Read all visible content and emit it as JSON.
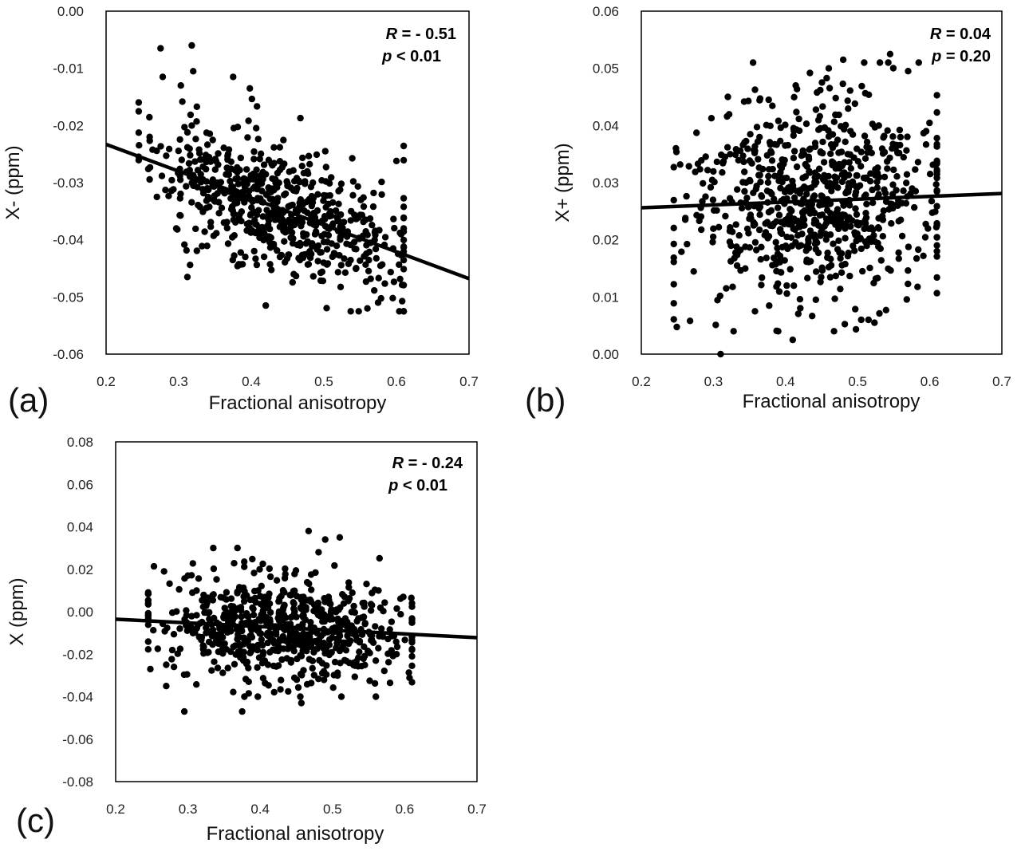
{
  "colors": {
    "points": "#000000",
    "axis": "#000000",
    "background": "#ffffff"
  },
  "chart_data": [
    {
      "id": "a",
      "type": "scatter",
      "panel_label": "(a)",
      "xlabel": "Fractional anisotropy",
      "ylabel": "X- (ppm)",
      "xlim": [
        0.2,
        0.7
      ],
      "ylim": [
        -0.06,
        0.0
      ],
      "xticks": [
        "0.2",
        "0.3",
        "0.4",
        "0.5",
        "0.6",
        "0.7"
      ],
      "yticks": [
        "0.00",
        "-0.01",
        "-0.02",
        "-0.03",
        "-0.04",
        "-0.05",
        "-0.06"
      ],
      "stats": {
        "r_symbol": "R",
        "r_text": " = - 0.51",
        "p_symbol": "p",
        "p_text": " < 0.01"
      },
      "trendline": {
        "x": [
          0.2,
          0.7
        ],
        "y": [
          -0.0233,
          -0.0468
        ]
      },
      "cloud": {
        "n": 650,
        "x_mean": 0.435,
        "x_sd": 0.085,
        "x_range": [
          0.245,
          0.61
        ],
        "slope": -0.047,
        "intercept": -0.0139,
        "resid_sd": 0.0055,
        "y_range": [
          -0.0525,
          -0.006
        ],
        "seed": 11
      },
      "points": [
        {
          "x": 0.275,
          "y": -0.0065
        },
        {
          "x": 0.318,
          "y": -0.006
        },
        {
          "x": 0.278,
          "y": -0.0115
        },
        {
          "x": 0.32,
          "y": -0.0105
        },
        {
          "x": 0.303,
          "y": -0.013
        },
        {
          "x": 0.375,
          "y": -0.0115
        },
        {
          "x": 0.398,
          "y": -0.0135
        },
        {
          "x": 0.312,
          "y": -0.0465
        },
        {
          "x": 0.42,
          "y": -0.0515
        },
        {
          "x": 0.56,
          "y": -0.052
        },
        {
          "x": 0.595,
          "y": -0.0502
        },
        {
          "x": 0.6,
          "y": -0.0262
        },
        {
          "x": 0.502,
          "y": -0.0245
        },
        {
          "x": 0.26,
          "y": -0.022
        },
        {
          "x": 0.27,
          "y": -0.0325
        }
      ]
    },
    {
      "id": "b",
      "type": "scatter",
      "panel_label": "(b)",
      "xlabel": "Fractional anisotropy",
      "ylabel": "X+ (ppm)",
      "xlim": [
        0.2,
        0.7
      ],
      "ylim": [
        0.0,
        0.06
      ],
      "xticks": [
        "0.2",
        "0.3",
        "0.4",
        "0.5",
        "0.6",
        "0.7"
      ],
      "yticks": [
        "0.06",
        "0.05",
        "0.04",
        "0.03",
        "0.02",
        "0.01",
        "0.00"
      ],
      "stats": {
        "r_symbol": "R",
        "r_text": " = 0.04",
        "p_symbol": "p",
        "p_text": " = 0.20"
      },
      "trendline": {
        "x": [
          0.2,
          0.7
        ],
        "y": [
          0.0256,
          0.0281
        ]
      },
      "cloud": {
        "n": 750,
        "x_mean": 0.435,
        "x_sd": 0.085,
        "x_range": [
          0.245,
          0.61
        ],
        "slope": 0.005,
        "intercept": 0.0246,
        "resid_sd": 0.0088,
        "y_range": [
          0.004,
          0.051
        ],
        "seed": 23
      },
      "points": [
        {
          "x": 0.355,
          "y": 0.051
        },
        {
          "x": 0.48,
          "y": 0.0515
        },
        {
          "x": 0.545,
          "y": 0.0525
        },
        {
          "x": 0.31,
          "y": 0.0
        },
        {
          "x": 0.41,
          "y": 0.0025
        },
        {
          "x": 0.328,
          "y": 0.004
        },
        {
          "x": 0.505,
          "y": 0.006
        },
        {
          "x": 0.515,
          "y": 0.006
        },
        {
          "x": 0.61,
          "y": 0.018
        },
        {
          "x": 0.248,
          "y": 0.036
        },
        {
          "x": 0.32,
          "y": 0.045
        },
        {
          "x": 0.595,
          "y": 0.039
        },
        {
          "x": 0.57,
          "y": 0.0495
        },
        {
          "x": 0.46,
          "y": 0.05
        }
      ]
    },
    {
      "id": "c",
      "type": "scatter",
      "panel_label": "(c)",
      "xlabel": "Fractional anisotropy",
      "ylabel": "X (ppm)",
      "xlim": [
        0.2,
        0.7
      ],
      "ylim": [
        -0.08,
        0.08
      ],
      "xticks": [
        "0.2",
        "0.3",
        "0.4",
        "0.5",
        "0.6",
        "0.7"
      ],
      "yticks": [
        "0.08",
        "0.06",
        "0.04",
        "0.02",
        "0.00",
        "-0.02",
        "-0.04",
        "-0.06",
        "-0.08"
      ],
      "stats": {
        "r_symbol": "R",
        "r_text": " = - 0.24",
        "p_symbol": "p",
        "p_text": " < 0.01"
      },
      "trendline": {
        "x": [
          0.2,
          0.7
        ],
        "y": [
          -0.0035,
          -0.0122
        ]
      },
      "cloud": {
        "n": 700,
        "x_mean": 0.435,
        "x_sd": 0.085,
        "x_range": [
          0.245,
          0.61
        ],
        "slope": -0.0174,
        "intercept": -2e-05,
        "resid_sd": 0.0125,
        "y_range": [
          -0.04,
          0.03
        ],
        "seed": 37
      },
      "points": [
        {
          "x": 0.467,
          "y": 0.038
        },
        {
          "x": 0.49,
          "y": 0.034
        },
        {
          "x": 0.51,
          "y": 0.035
        },
        {
          "x": 0.295,
          "y": -0.047
        },
        {
          "x": 0.375,
          "y": -0.047
        },
        {
          "x": 0.457,
          "y": -0.043
        },
        {
          "x": 0.248,
          "y": -0.027
        },
        {
          "x": 0.61,
          "y": -0.021
        },
        {
          "x": 0.598,
          "y": 0.007
        },
        {
          "x": 0.3,
          "y": 0.017
        },
        {
          "x": 0.56,
          "y": -0.04
        },
        {
          "x": 0.27,
          "y": -0.035
        }
      ]
    }
  ]
}
